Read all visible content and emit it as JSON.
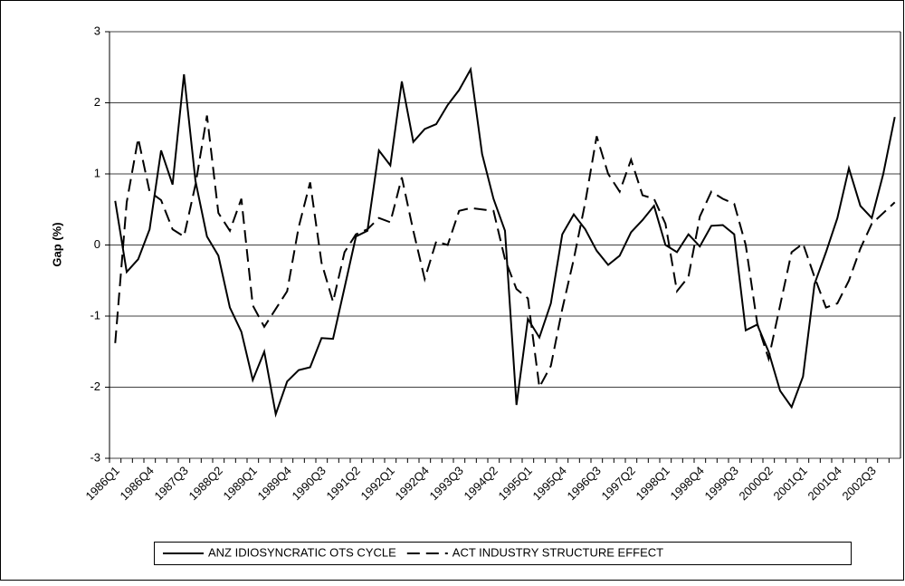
{
  "chart_data": {
    "type": "line",
    "y_label": "Gap (%)",
    "categories": [
      "1986Q1",
      null,
      null,
      "1986Q4",
      null,
      null,
      "1987Q3",
      null,
      null,
      "1988Q2",
      null,
      null,
      "1989Q1",
      null,
      null,
      "1989Q4",
      null,
      null,
      "1990Q3",
      null,
      null,
      "1991Q2",
      null,
      null,
      "1992Q1",
      null,
      null,
      "1992Q4",
      null,
      null,
      "1993Q3",
      null,
      null,
      "1994Q2",
      null,
      null,
      "1995Q1",
      null,
      null,
      "1995Q4",
      null,
      null,
      "1996Q3",
      null,
      null,
      "1997Q2",
      null,
      null,
      "1998Q1",
      null,
      null,
      "1998Q4",
      null,
      null,
      "1999Q3",
      null,
      null,
      "2000Q2",
      null,
      null,
      "2001Q1",
      null,
      null,
      "2001Q4",
      null,
      null,
      "2002Q3",
      null,
      null
    ],
    "series": [
      {
        "name": "ANZ IDIOSYNCRATIC OTS CYCLE",
        "color": "#000000",
        "dash": "solid",
        "values": [
          0.62,
          -0.38,
          -0.2,
          0.22,
          1.33,
          0.85,
          2.4,
          0.9,
          0.12,
          -0.15,
          -0.88,
          -1.22,
          -1.9,
          -1.5,
          -2.38,
          -1.92,
          -1.76,
          -1.72,
          -1.31,
          -1.32,
          -0.6,
          0.12,
          0.2,
          1.33,
          1.12,
          2.3,
          1.45,
          1.63,
          1.7,
          1.97,
          2.18,
          2.47,
          1.28,
          0.65,
          0.2,
          -2.25,
          -1.04,
          -1.3,
          -0.82,
          0.15,
          0.43,
          0.22,
          -0.08,
          -0.28,
          -0.15,
          0.18,
          0.35,
          0.55,
          0.0,
          -0.1,
          0.15,
          -0.02,
          0.27,
          0.28,
          0.15,
          -1.2,
          -1.12,
          -1.5,
          -2.05,
          -2.28,
          -1.85,
          -0.55,
          -0.1,
          0.38,
          1.08,
          0.55,
          0.38,
          1.0,
          1.8
        ]
      },
      {
        "name": "ACT INDUSTRY STRUCTURE EFFECT",
        "color": "#000000",
        "dash": "dashed",
        "values": [
          -1.38,
          0.6,
          1.5,
          0.75,
          0.63,
          0.22,
          0.12,
          0.85,
          1.82,
          0.45,
          0.2,
          0.65,
          -0.85,
          -1.15,
          -0.9,
          -0.65,
          0.25,
          0.88,
          -0.25,
          -0.8,
          -0.1,
          0.15,
          0.22,
          0.38,
          0.32,
          0.95,
          0.2,
          -0.48,
          0.05,
          0.0,
          0.48,
          0.52,
          0.5,
          0.48,
          -0.2,
          -0.62,
          -0.75,
          -2.0,
          -1.7,
          -0.9,
          -0.2,
          0.6,
          1.53,
          1.0,
          0.75,
          1.2,
          0.7,
          0.65,
          0.3,
          -0.65,
          -0.45,
          0.4,
          0.75,
          0.65,
          0.58,
          0.0,
          -1.1,
          -1.6,
          -0.85,
          -0.1,
          0.02,
          -0.45,
          -0.88,
          -0.82,
          -0.5,
          -0.05,
          0.3,
          0.45,
          0.6
        ]
      }
    ],
    "ylim": [
      -3,
      3
    ],
    "yticks": [
      -3,
      -2,
      -1,
      0,
      1,
      2,
      3
    ],
    "grid": true,
    "legend": "bottom"
  }
}
